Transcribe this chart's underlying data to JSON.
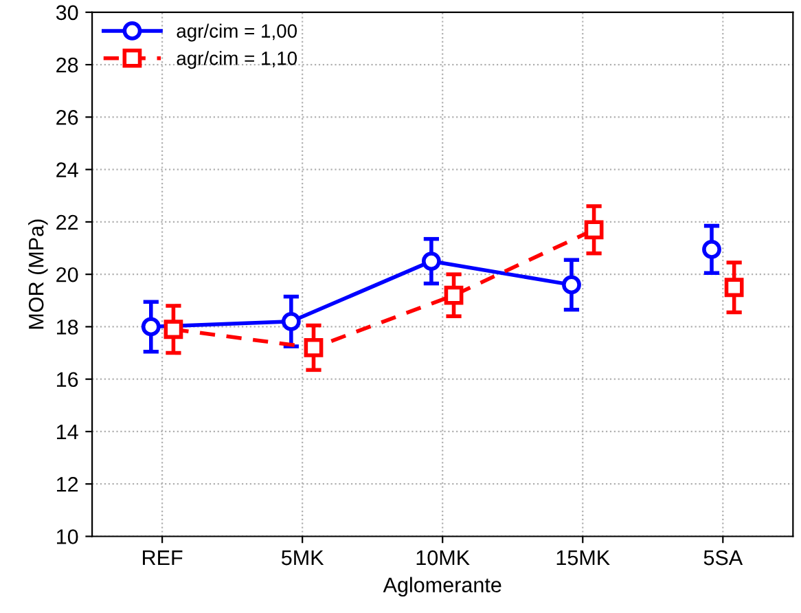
{
  "chart_data": {
    "type": "line",
    "xlabel": "Aglomerante",
    "ylabel": "MOR (MPa)",
    "categories": [
      "REF",
      "5MK",
      "10MK",
      "15MK",
      "5SA"
    ],
    "ylim": [
      10,
      30
    ],
    "yticks": [
      10,
      12,
      14,
      16,
      18,
      20,
      22,
      24,
      26,
      28,
      30
    ],
    "grid": true,
    "legend": "top left",
    "series": [
      {
        "name": "agr/cim = 1,00",
        "color": "#0000ff",
        "marker": "circle",
        "line_style": "solid",
        "values": [
          18.0,
          18.2,
          20.5,
          19.6,
          null
        ],
        "errors": [
          0.95,
          0.95,
          0.85,
          0.95,
          null
        ]
      },
      {
        "name": "agr/cim = 1,10",
        "color": "#ff0000",
        "marker": "square",
        "line_style": "dashed",
        "values": [
          17.9,
          17.2,
          19.2,
          21.7,
          null
        ],
        "errors": [
          0.9,
          0.85,
          0.8,
          0.9,
          null
        ]
      },
      {
        "type": "scatter",
        "color": "#0000ff",
        "marker": "circle",
        "values": [
          null,
          null,
          null,
          null,
          20.95
        ],
        "errors": [
          null,
          null,
          null,
          null,
          0.9
        ]
      },
      {
        "type": "scatter",
        "color": "#ff0000",
        "marker": "square",
        "values": [
          null,
          null,
          null,
          null,
          19.5
        ],
        "errors": [
          null,
          null,
          null,
          null,
          0.95
        ]
      }
    ]
  }
}
